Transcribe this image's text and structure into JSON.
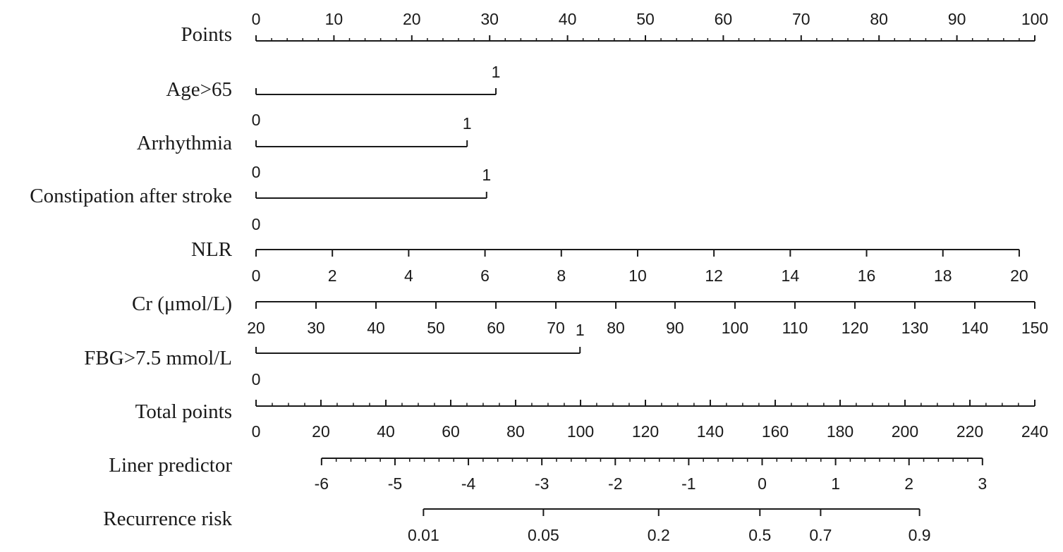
{
  "chart_data": {
    "type": "nomogram",
    "rows": [
      {
        "id": "points",
        "label": "Points",
        "kind": "scale",
        "ticks": [
          {
            "value": 0,
            "label": "0",
            "points": 0
          },
          {
            "value": 10,
            "label": "10",
            "points": 10
          },
          {
            "value": 20,
            "label": "20",
            "points": 20
          },
          {
            "value": 30,
            "label": "30",
            "points": 30
          },
          {
            "value": 40,
            "label": "40",
            "points": 40
          },
          {
            "value": 50,
            "label": "50",
            "points": 50
          },
          {
            "value": 60,
            "label": "60",
            "points": 60
          },
          {
            "value": 70,
            "label": "70",
            "points": 70
          },
          {
            "value": 80,
            "label": "80",
            "points": 80
          },
          {
            "value": 90,
            "label": "90",
            "points": 90
          },
          {
            "value": 100,
            "label": "100",
            "points": 100
          }
        ],
        "minor_step_points": 2
      },
      {
        "id": "age",
        "label": "Age>65",
        "kind": "categorical",
        "categories": [
          {
            "value": "0",
            "points": 0
          },
          {
            "value": "1",
            "points": 30.8
          }
        ]
      },
      {
        "id": "arrhythmia",
        "label": "Arrhythmia",
        "kind": "categorical",
        "categories": [
          {
            "value": "0",
            "points": 0
          },
          {
            "value": "1",
            "points": 27.1
          }
        ]
      },
      {
        "id": "constipation",
        "label": "Constipation after stroke",
        "kind": "categorical",
        "categories": [
          {
            "value": "0",
            "points": 0
          },
          {
            "value": "1",
            "points": 29.6
          }
        ]
      },
      {
        "id": "nlr",
        "label": "NLR",
        "kind": "scale",
        "ticks": [
          {
            "value": 0,
            "label": "0",
            "points": 0
          },
          {
            "value": 2,
            "label": "2",
            "points": 9.8
          },
          {
            "value": 4,
            "label": "4",
            "points": 19.6
          },
          {
            "value": 6,
            "label": "6",
            "points": 29.4
          },
          {
            "value": 8,
            "label": "8",
            "points": 39.2
          },
          {
            "value": 10,
            "label": "10",
            "points": 49.0
          },
          {
            "value": 12,
            "label": "12",
            "points": 58.8
          },
          {
            "value": 14,
            "label": "14",
            "points": 68.6
          },
          {
            "value": 16,
            "label": "16",
            "points": 78.4
          },
          {
            "value": 18,
            "label": "18",
            "points": 88.2
          },
          {
            "value": 20,
            "label": "20",
            "points": 98.0
          }
        ]
      },
      {
        "id": "cr",
        "label": "Cr (μmol/L)",
        "kind": "scale",
        "ticks": [
          {
            "value": 20,
            "label": "20",
            "points": 0
          },
          {
            "value": 30,
            "label": "30",
            "points": 7.7
          },
          {
            "value": 40,
            "label": "40",
            "points": 15.4
          },
          {
            "value": 50,
            "label": "50",
            "points": 23.1
          },
          {
            "value": 60,
            "label": "60",
            "points": 30.8
          },
          {
            "value": 70,
            "label": "70",
            "points": 38.5
          },
          {
            "value": 80,
            "label": "80",
            "points": 46.2
          },
          {
            "value": 90,
            "label": "90",
            "points": 53.8
          },
          {
            "value": 100,
            "label": "100",
            "points": 61.5
          },
          {
            "value": 110,
            "label": "110",
            "points": 69.2
          },
          {
            "value": 120,
            "label": "120",
            "points": 76.9
          },
          {
            "value": 130,
            "label": "130",
            "points": 84.6
          },
          {
            "value": 140,
            "label": "140",
            "points": 92.3
          },
          {
            "value": 150,
            "label": "150",
            "points": 100
          }
        ]
      },
      {
        "id": "fbg",
        "label": "FBG>7.5 mmol/L",
        "kind": "categorical",
        "categories": [
          {
            "value": "0",
            "points": 0
          },
          {
            "value": "1",
            "points": 41.6
          }
        ]
      },
      {
        "id": "total",
        "label": "Total points",
        "kind": "scale",
        "ticks": [
          {
            "value": 0,
            "label": "0",
            "points": 0
          },
          {
            "value": 20,
            "label": "20",
            "points": 8.33
          },
          {
            "value": 40,
            "label": "40",
            "points": 16.67
          },
          {
            "value": 60,
            "label": "60",
            "points": 25
          },
          {
            "value": 80,
            "label": "80",
            "points": 33.33
          },
          {
            "value": 100,
            "label": "100",
            "points": 41.67
          },
          {
            "value": 120,
            "label": "120",
            "points": 50
          },
          {
            "value": 140,
            "label": "140",
            "points": 58.33
          },
          {
            "value": 160,
            "label": "160",
            "points": 66.67
          },
          {
            "value": 180,
            "label": "180",
            "points": 75
          },
          {
            "value": 200,
            "label": "200",
            "points": 83.33
          },
          {
            "value": 220,
            "label": "220",
            "points": 91.67
          },
          {
            "value": 240,
            "label": "240",
            "points": 100
          }
        ],
        "minor_step_points": 2.083
      },
      {
        "id": "lp",
        "label": "Liner predictor",
        "kind": "scale",
        "ticks": [
          {
            "value": -6,
            "label": "-6",
            "points": 8.41
          },
          {
            "value": -5,
            "label": "-5",
            "points": 17.84
          },
          {
            "value": -4,
            "label": "-4",
            "points": 27.27
          },
          {
            "value": -3,
            "label": "-3",
            "points": 36.7
          },
          {
            "value": -2,
            "label": "-2",
            "points": 46.13
          },
          {
            "value": -1,
            "label": "-1",
            "points": 55.56
          },
          {
            "value": 0,
            "label": "0",
            "points": 64.99
          },
          {
            "value": 1,
            "label": "1",
            "points": 74.42
          },
          {
            "value": 2,
            "label": "2",
            "points": 83.85
          },
          {
            "value": 3,
            "label": "3",
            "points": 93.28
          }
        ],
        "minor_step_points": 1.886
      },
      {
        "id": "risk",
        "label": "Recurrence risk",
        "kind": "scale",
        "ticks": [
          {
            "value": 0.01,
            "label": "0.01",
            "points": 21.5
          },
          {
            "value": 0.05,
            "label": "0.05",
            "points": 36.9
          },
          {
            "value": 0.2,
            "label": "0.2",
            "points": 51.7
          },
          {
            "value": 0.5,
            "label": "0.5",
            "points": 64.7
          },
          {
            "value": 0.7,
            "label": "0.7",
            "points": 72.5
          },
          {
            "value": 0.9,
            "label": "0.9",
            "points": 85.2
          }
        ]
      }
    ]
  }
}
